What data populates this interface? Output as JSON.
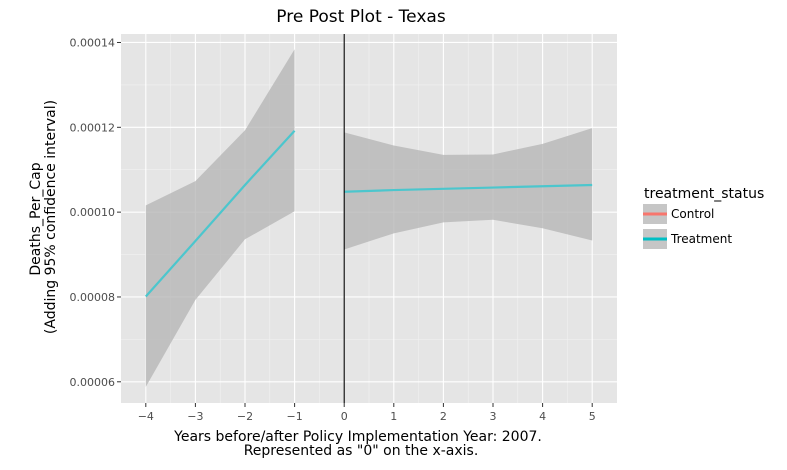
{
  "chart_data": {
    "type": "line",
    "title": "Pre Post Plot - Texas",
    "xlabel_line1": "Years before/after Policy Implementation Year: 2007.",
    "xlabel_line2": "Represented as \"0\" on the x-axis.",
    "ylabel_line1": "Deaths_Per_Cap",
    "ylabel_line2": "(Adding 95% confidence interval)",
    "xlim": [
      -4.5,
      5.5
    ],
    "ylim": [
      5.5e-05,
      0.000142
    ],
    "x_ticks": [
      -4,
      -3,
      -2,
      -1,
      0,
      1,
      2,
      3,
      4,
      5
    ],
    "x_tick_labels": [
      "−4",
      "−3",
      "−2",
      "−1",
      "0",
      "1",
      "2",
      "3",
      "4",
      "5"
    ],
    "y_ticks": [
      6e-05,
      8e-05,
      0.0001,
      0.00012,
      0.00014
    ],
    "y_tick_labels": [
      "0.00006",
      "0.00008",
      "0.00010",
      "0.00012",
      "0.00014"
    ],
    "vline_x": 0,
    "grid": true,
    "legend": {
      "title": "treatment_status",
      "placement": "right",
      "items": [
        {
          "label": "Control",
          "color": "#f8766d"
        },
        {
          "label": "Treatment",
          "color": "#00bfc4"
        }
      ]
    },
    "series": [
      {
        "name": "Treatment",
        "segment": "pre",
        "color": "#4cc6cd",
        "x": [
          -4,
          -3,
          -2,
          -1
        ],
        "y": [
          8.01e-05,
          9.32e-05,
          0.0001064,
          0.0001192
        ],
        "ci_lower": [
          5.88e-05,
          7.93e-05,
          9.36e-05,
          0.0001002
        ],
        "ci_upper": [
          0.0001016,
          0.0001073,
          0.0001193,
          0.0001384
        ]
      },
      {
        "name": "Treatment",
        "segment": "post",
        "color": "#4cc6cd",
        "x": [
          0,
          1,
          2,
          3,
          4,
          5
        ],
        "y": [
          0.0001048,
          0.0001052,
          0.0001055,
          0.0001058,
          0.0001061,
          0.0001064
        ],
        "ci_lower": [
          9.12e-05,
          9.5e-05,
          9.76e-05,
          9.82e-05,
          9.62e-05,
          9.33e-05
        ],
        "ci_upper": [
          0.0001188,
          0.0001157,
          0.0001135,
          0.0001136,
          0.0001161,
          0.0001198
        ]
      }
    ],
    "colors": {
      "panel_bg": "#e5e5e5",
      "grid_major": "#ffffff",
      "ribbon": "#b3b3b3",
      "vline": "#000000"
    }
  }
}
